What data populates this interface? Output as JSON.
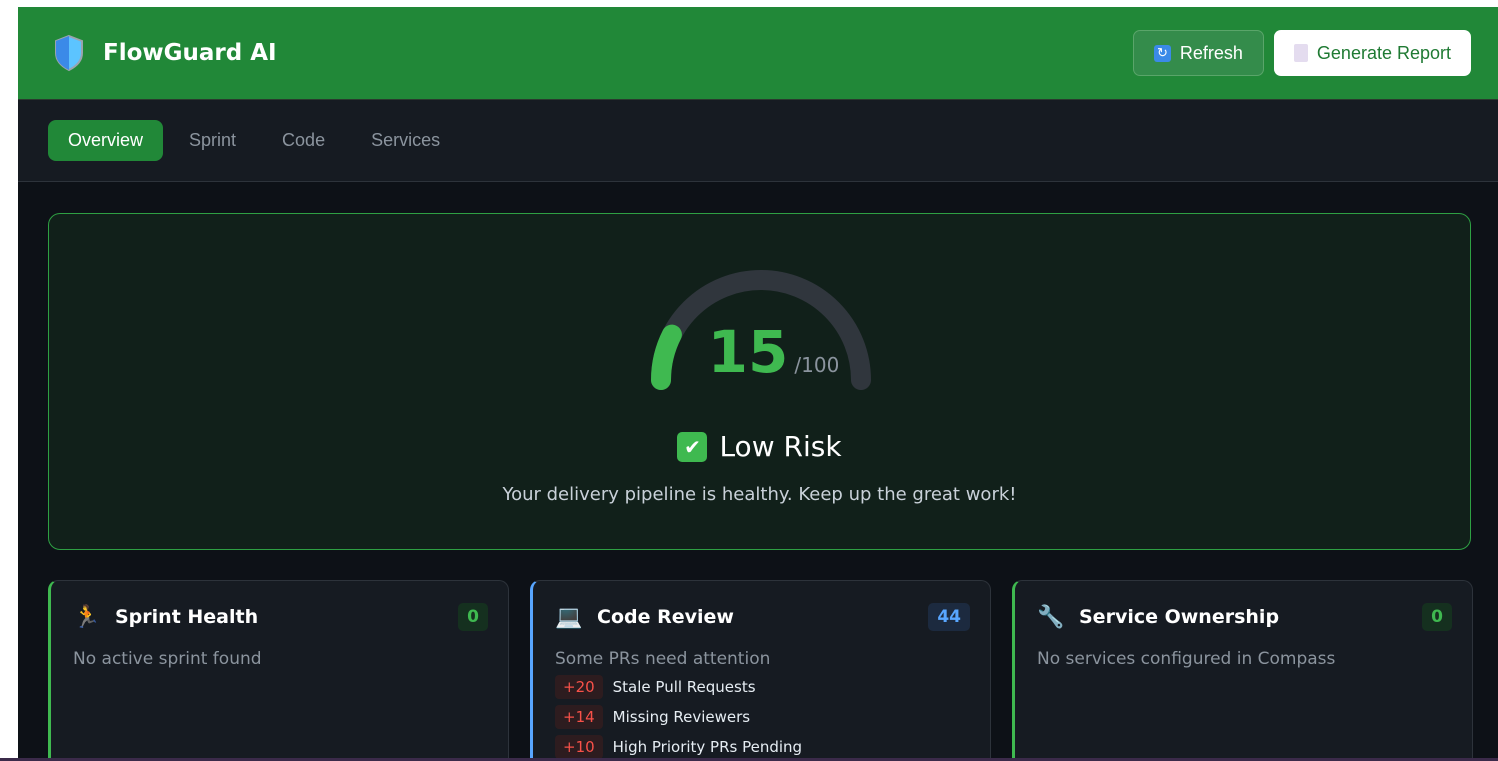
{
  "header": {
    "title": "FlowGuard AI",
    "refresh_label": "Refresh",
    "report_label": "Generate Report"
  },
  "nav": {
    "tabs": [
      {
        "label": "Overview",
        "active": true
      },
      {
        "label": "Sprint"
      },
      {
        "label": "Code"
      },
      {
        "label": "Services"
      }
    ]
  },
  "risk": {
    "score": "15",
    "max": "/100",
    "score_fraction": 0.15,
    "level": "Low Risk",
    "message": "Your delivery pipeline is healthy. Keep up the great work!",
    "color": "#3fb950"
  },
  "cards": [
    {
      "title": "Sprint Health",
      "icon": "runner-icon",
      "badge": "0",
      "subtitle": "No active sprint found"
    },
    {
      "title": "Code Review",
      "icon": "laptop-icon",
      "badge": "44",
      "subtitle": "Some PRs need attention",
      "items": [
        {
          "delta": "+20",
          "label": "Stale Pull Requests"
        },
        {
          "delta": "+14",
          "label": "Missing Reviewers"
        },
        {
          "delta": "+10",
          "label": "High Priority PRs Pending"
        }
      ]
    },
    {
      "title": "Service Ownership",
      "icon": "wrench-icon",
      "badge": "0",
      "subtitle": "No services configured in Compass"
    }
  ]
}
